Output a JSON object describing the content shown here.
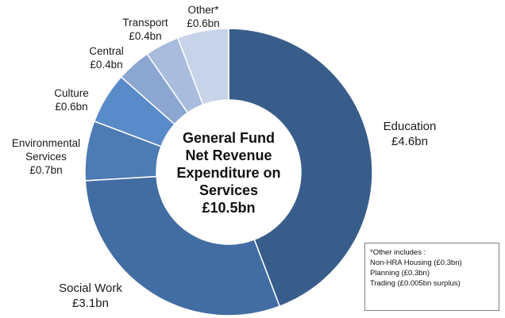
{
  "chart_data": {
    "type": "pie",
    "title": "General Fund Net Revenue Expenditure on Services",
    "center": {
      "line1": "General Fund",
      "line2": "Net Revenue",
      "line3": "Expenditure on",
      "line4": "Services",
      "line5": "£10.5bn"
    },
    "total": 10.5,
    "unit": "£bn",
    "slices": [
      {
        "name": "Education",
        "value": 4.6,
        "label": "£4.6bn",
        "color": "#385d8a"
      },
      {
        "name": "Social Work",
        "value": 3.1,
        "label": "£3.1bn",
        "color": "#426da3"
      },
      {
        "name": "Environmental Services",
        "value": 0.7,
        "label": "£0.7bn",
        "color": "#4d7bb3"
      },
      {
        "name": "Culture",
        "value": 0.6,
        "label": "£0.6bn",
        "color": "#5a8bc9"
      },
      {
        "name": "Central",
        "value": 0.4,
        "label": "£0.4bn",
        "color": "#8aa6d1"
      },
      {
        "name": "Transport",
        "value": 0.4,
        "label": "£0.4bn",
        "color": "#a9bcdd"
      },
      {
        "name": "Other*",
        "value": 0.6,
        "label": "£0.6bn",
        "color": "#c7d3e8"
      }
    ]
  },
  "labels": {
    "education": {
      "name": "Education",
      "value": "£4.6bn"
    },
    "social_work": {
      "name": "Social Work",
      "value": "£3.1bn"
    },
    "environmental": {
      "line1": "Environmental",
      "line2": "Services",
      "value": "£0.7bn"
    },
    "culture": {
      "name": "Culture",
      "value": "£0.6bn"
    },
    "central": {
      "name": "Central",
      "value": "£0.4bn"
    },
    "transport": {
      "name": "Transport",
      "value": "£0.4bn"
    },
    "other": {
      "name": "Other*",
      "value": "£0.6bn"
    }
  },
  "note": {
    "heading": "*Other includes :",
    "items": [
      "Non-HRA Housing (£0.3bn)",
      "Planning (£0.3bn)",
      "Trading (£0.005bn surplus)"
    ]
  }
}
